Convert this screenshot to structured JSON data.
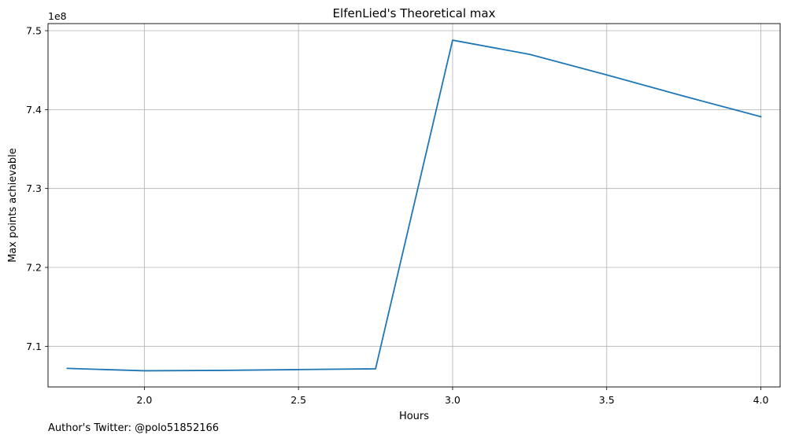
{
  "chart_data": {
    "type": "line",
    "title": "ElfenLied's Theoretical max",
    "xlabel": "Hours",
    "ylabel": "Max points achievable",
    "y_offset_text": "1e8",
    "x": [
      1.75,
      2.0,
      2.25,
      2.5,
      2.75,
      3.0,
      3.25,
      3.5,
      3.75,
      4.0
    ],
    "series": [
      {
        "values": [
          707200000,
          706900000,
          706950000,
          707050000,
          707150000,
          748800000,
          747000000,
          744400000,
          741700000,
          739100000
        ],
        "color": "#1f77b4"
      }
    ],
    "xlim": [
      1.6875,
      4.0625
    ],
    "ylim": [
      704850000,
      750900000
    ],
    "xticks": [
      2.0,
      2.5,
      3.0,
      3.5,
      4.0
    ],
    "xtick_labels": [
      "2.0",
      "2.5",
      "3.0",
      "3.5",
      "4.0"
    ],
    "yticks": [
      710000000,
      720000000,
      730000000,
      740000000,
      750000000
    ],
    "ytick_labels": [
      "7.1",
      "7.2",
      "7.3",
      "7.4",
      "7.5"
    ],
    "grid": true,
    "legend": "none"
  },
  "footnote": "Author's Twitter: @polo51852166",
  "colors": {
    "grid": "#b0b0b0",
    "axes": "#000000",
    "line": "#1f77b4"
  }
}
